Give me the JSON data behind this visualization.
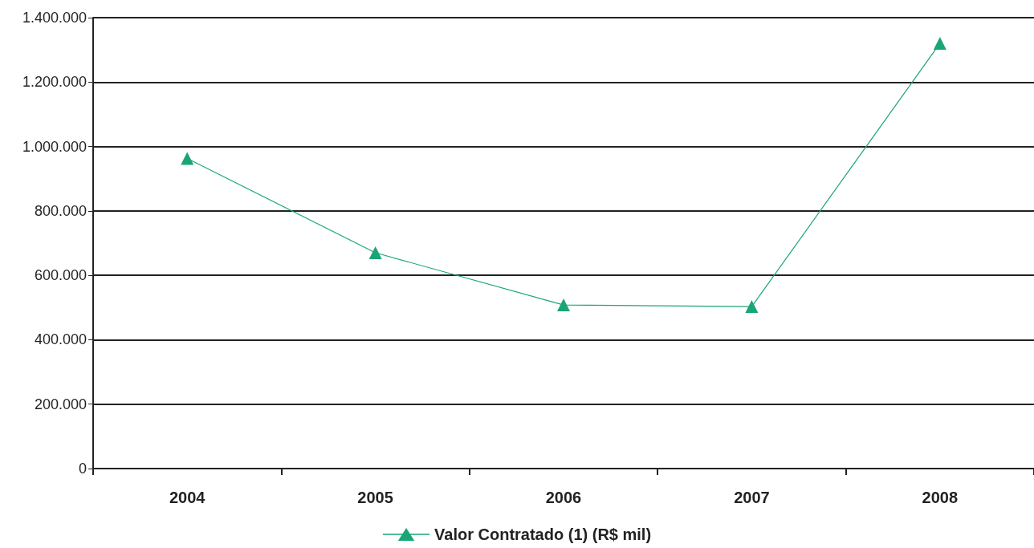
{
  "chart_data": {
    "type": "line",
    "categories": [
      "2004",
      "2005",
      "2006",
      "2007",
      "2008"
    ],
    "series": [
      {
        "name": "Valor Contratado (1) (R$ mil)",
        "color": "#1aa575",
        "values": [
          963000,
          670000,
          508000,
          503000,
          1320000
        ]
      }
    ],
    "ylim": [
      0,
      1400000
    ],
    "yticks": [
      0,
      {
        "value": 200000,
        "label": "200.000"
      },
      {
        "value": 400000,
        "label": "400.000"
      },
      {
        "value": 600000,
        "label": "600.000"
      },
      {
        "value": 800000,
        "label": "800.000"
      },
      {
        "value": 1000000,
        "label": "1.000.000"
      },
      {
        "value": 1200000,
        "label": "1.200.000"
      },
      {
        "value": 1400000,
        "label": "1.400.000"
      }
    ],
    "grid": "y",
    "legend": "bottom",
    "marker": "triangle",
    "line_style": "solid"
  }
}
